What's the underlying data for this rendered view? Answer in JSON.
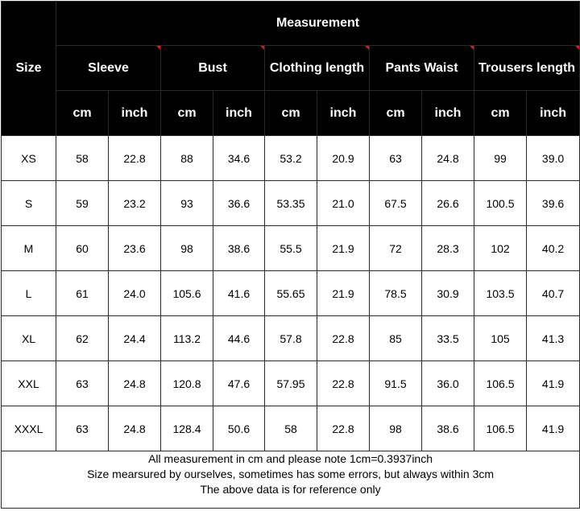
{
  "header": {
    "size_label": "Size",
    "measurement_label": "Measurement",
    "groups": [
      "Sleeve",
      "Bust",
      "Clothing length",
      "Pants Waist",
      "Trousers length"
    ],
    "units": [
      "cm",
      "inch",
      "cm",
      "inch",
      "cm",
      "inch",
      "cm",
      "inch",
      "cm",
      "inch"
    ]
  },
  "rows": [
    {
      "size": "XS",
      "values": [
        "58",
        "22.8",
        "88",
        "34.6",
        "53.2",
        "20.9",
        "63",
        "24.8",
        "99",
        "39.0"
      ]
    },
    {
      "size": "S",
      "values": [
        "59",
        "23.2",
        "93",
        "36.6",
        "53.35",
        "21.0",
        "67.5",
        "26.6",
        "100.5",
        "39.6"
      ]
    },
    {
      "size": "M",
      "values": [
        "60",
        "23.6",
        "98",
        "38.6",
        "55.5",
        "21.9",
        "72",
        "28.3",
        "102",
        "40.2"
      ]
    },
    {
      "size": "L",
      "values": [
        "61",
        "24.0",
        "105.6",
        "41.6",
        "55.65",
        "21.9",
        "78.5",
        "30.9",
        "103.5",
        "40.7"
      ]
    },
    {
      "size": "XL",
      "values": [
        "62",
        "24.4",
        "113.2",
        "44.6",
        "57.8",
        "22.8",
        "85",
        "33.5",
        "105",
        "41.3"
      ]
    },
    {
      "size": "XXL",
      "values": [
        "63",
        "24.8",
        "120.8",
        "47.6",
        "57.95",
        "22.8",
        "91.5",
        "36.0",
        "106.5",
        "41.9"
      ]
    },
    {
      "size": "XXXL",
      "values": [
        "63",
        "24.8",
        "128.4",
        "50.6",
        "58",
        "22.8",
        "98",
        "38.6",
        "106.5",
        "41.9"
      ]
    }
  ],
  "notes": [
    "All measurement in cm and please note 1cm=0.3937inch",
    "Size mearsured by ourselves, sometimes has some errors, but always within 3cm",
    "The above data is for reference only"
  ],
  "colors": {
    "header_bg": "#000000",
    "header_text": "#ffffff",
    "body_bg": "#ffffff",
    "corner_mark": "#d21c1c"
  }
}
